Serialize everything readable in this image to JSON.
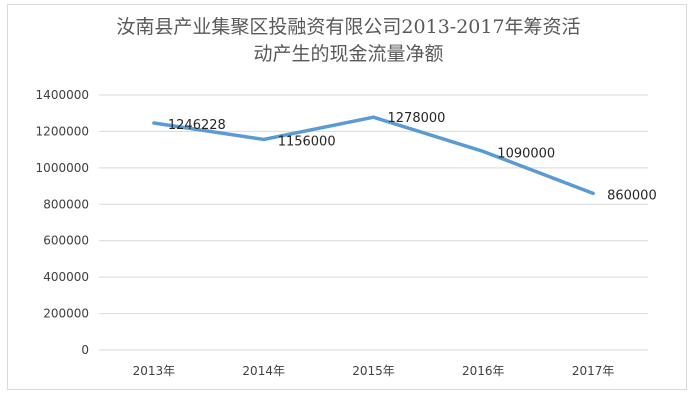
{
  "chart_data": {
    "type": "line",
    "title_line1": "汝南县产业集聚区投融资有限公司2013-2017年筹资活",
    "title_line2": "动产生的现金流量净额",
    "categories": [
      "2013年",
      "2014年",
      "2015年",
      "2016年",
      "2017年"
    ],
    "series": [
      {
        "values": [
          1246228,
          1156000,
          1278000,
          1090000,
          860000
        ],
        "color": "#5b9bd5"
      }
    ],
    "data_labels": [
      "1246228",
      "1156000",
      "1278000",
      "1090000",
      "860000"
    ],
    "y_ticks": [
      0,
      200000,
      400000,
      600000,
      800000,
      1000000,
      1200000,
      1400000
    ],
    "y_tick_labels": [
      "0",
      "200000",
      "400000",
      "600000",
      "800000",
      "1000000",
      "1200000",
      "1400000"
    ],
    "ylim": [
      0,
      1400000
    ],
    "grid": true,
    "legend": "none",
    "colors": {
      "gridline": "#d9d9d9",
      "line": "#5b9bd5"
    }
  }
}
